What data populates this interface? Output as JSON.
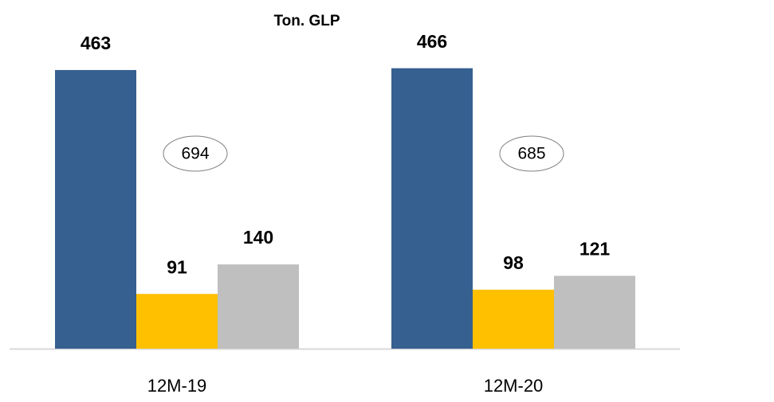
{
  "chart_data": {
    "type": "bar",
    "title": "Ton. GLP",
    "categories": [
      "12M-19",
      "12M-20"
    ],
    "series": [
      {
        "color": "#36608f",
        "values": [
          463,
          466
        ]
      },
      {
        "color": "#ffc000",
        "values": [
          91,
          98
        ]
      },
      {
        "color": "#bfbfbf",
        "values": [
          140,
          121
        ]
      }
    ],
    "annotations": [
      "694",
      "685"
    ],
    "ylim": [
      0,
      500
    ]
  }
}
